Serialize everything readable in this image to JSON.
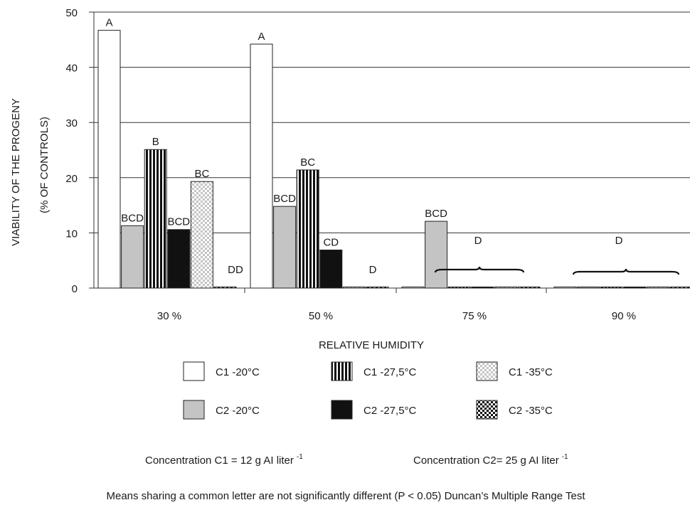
{
  "chart_data": {
    "type": "bar",
    "ylabel_line1": "VIABILITY OF THE PROGENY",
    "ylabel_line2": "(% OF CONTROLS)",
    "xlabel": "RELATIVE HUMIDITY",
    "ylim": [
      0,
      50
    ],
    "yticks": [
      0,
      10,
      20,
      30,
      40,
      50
    ],
    "grid": true,
    "categories": [
      "30 %",
      "50 %",
      "75 %",
      "90 %"
    ],
    "series": [
      {
        "name": "C1 -20°C",
        "pattern": "white",
        "values": [
          46.7,
          44.2,
          0.2,
          0.2
        ],
        "labels": [
          "A",
          "A",
          "",
          ""
        ]
      },
      {
        "name": "C2 -20°C",
        "pattern": "gray",
        "values": [
          11.3,
          14.8,
          12.1,
          0.2
        ],
        "labels": [
          "BCD",
          "BCD",
          "BCD",
          ""
        ]
      },
      {
        "name": "C1 -27,5°C",
        "pattern": "vstripe",
        "values": [
          25.1,
          21.4,
          0.2,
          0.2
        ],
        "labels": [
          "B",
          "BC",
          "",
          ""
        ]
      },
      {
        "name": "C2 -27,5°C",
        "pattern": "black",
        "values": [
          10.6,
          6.9,
          0.2,
          0.2
        ],
        "labels": [
          "BCD",
          "CD",
          "",
          ""
        ]
      },
      {
        "name": "C1 -35°C",
        "pattern": "lightcheck",
        "values": [
          19.3,
          0.2,
          0.2,
          0.2
        ],
        "labels": [
          "BC",
          "",
          "",
          ""
        ]
      },
      {
        "name": "C2 -35°C",
        "pattern": "darkcheck",
        "values": [
          0.2,
          0.2,
          0.2,
          0.2
        ],
        "labels": [
          "",
          "",
          "",
          ""
        ]
      }
    ],
    "group_annotations": [
      {
        "category": "30 %",
        "label": "DD"
      },
      {
        "category": "50 %",
        "label": "D"
      },
      {
        "category": "75 %",
        "label": "D"
      },
      {
        "category": "90 %",
        "label": "D"
      }
    ]
  },
  "legend": {
    "items": [
      {
        "label": "C1 -20°C",
        "pattern": "white"
      },
      {
        "label": "C1 -27,5°C",
        "pattern": "vstripe"
      },
      {
        "label": "C1 -35°C",
        "pattern": "lightcheck"
      },
      {
        "label": "C2 -20°C",
        "pattern": "gray"
      },
      {
        "label": "C2 -27,5°C",
        "pattern": "black"
      },
      {
        "label": "C2 -35°C",
        "pattern": "darkcheck"
      }
    ]
  },
  "notes": {
    "c1_text": "Concentration C1  = 12 g AI liter",
    "c1_sup": "-1",
    "c2_text": "Concentration C2= 25 g AI liter",
    "c2_sup": "-1",
    "footnote": "Means sharing a common letter are not significantly different (P < 0.05) Duncan’s Multiple Range Test"
  }
}
